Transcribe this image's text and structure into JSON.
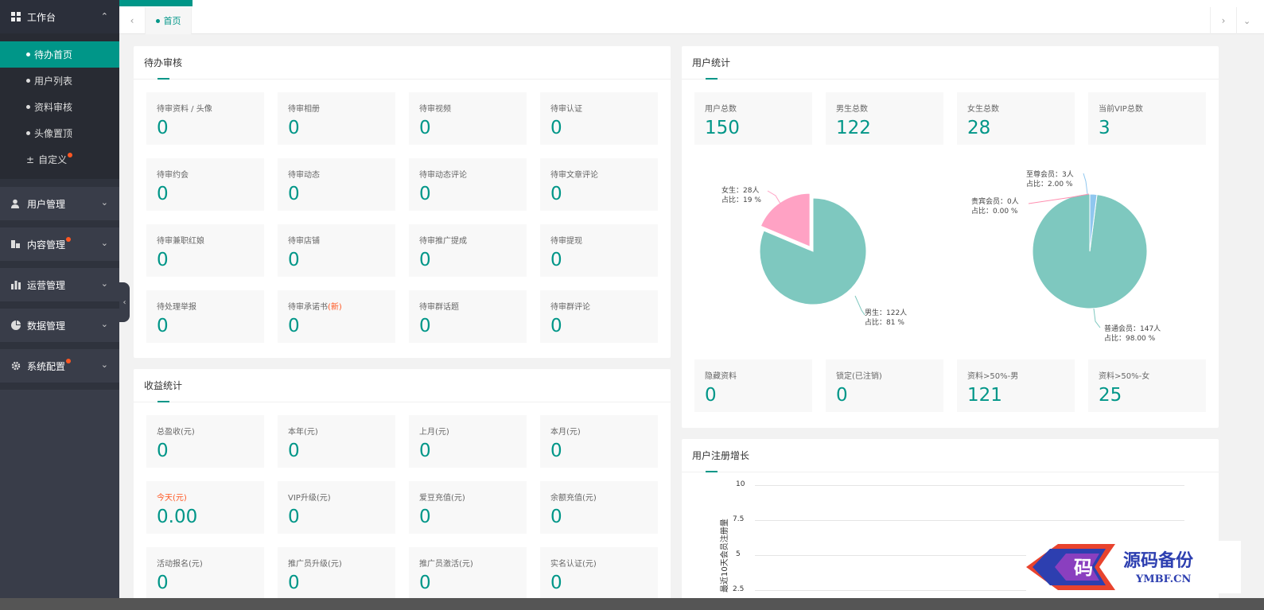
{
  "sidebar": {
    "workbench": {
      "label": "工作台",
      "items": [
        {
          "label": "待办首页",
          "active": true
        },
        {
          "label": "用户列表"
        },
        {
          "label": "资料审核"
        },
        {
          "label": "头像置顶"
        },
        {
          "label": "自定义",
          "badge": true
        }
      ]
    },
    "groups": [
      {
        "label": "用户管理",
        "icon": "user-icon"
      },
      {
        "label": "内容管理",
        "icon": "content-icon",
        "badge": true
      },
      {
        "label": "运营管理",
        "icon": "bar-chart-icon"
      },
      {
        "label": "数据管理",
        "icon": "pie-icon"
      },
      {
        "label": "系统配置",
        "icon": "gear-icon",
        "badge": true
      }
    ]
  },
  "tabs": {
    "home": "首页"
  },
  "pending": {
    "title": "待办审核",
    "items": [
      {
        "label": "待审资料 / 头像",
        "value": "0"
      },
      {
        "label": "待审相册",
        "value": "0"
      },
      {
        "label": "待审视频",
        "value": "0"
      },
      {
        "label": "待审认证",
        "value": "0"
      },
      {
        "label": "待审约会",
        "value": "0"
      },
      {
        "label": "待审动态",
        "value": "0"
      },
      {
        "label": "待审动态评论",
        "value": "0"
      },
      {
        "label": "待审文章评论",
        "value": "0"
      },
      {
        "label": "待审兼职红娘",
        "value": "0"
      },
      {
        "label": "待审店铺",
        "value": "0"
      },
      {
        "label": "待审推广提成",
        "value": "0"
      },
      {
        "label": "待审提现",
        "value": "0"
      },
      {
        "label": "待处理举报",
        "value": "0"
      },
      {
        "label": "待审承诺书",
        "tag": "(新)",
        "value": "0"
      },
      {
        "label": "待审群话题",
        "value": "0"
      },
      {
        "label": "待审群评论",
        "value": "0"
      }
    ]
  },
  "revenue": {
    "title": "收益统计",
    "items": [
      {
        "label": "总盈收(元)",
        "value": "0"
      },
      {
        "label": "本年(元)",
        "value": "0"
      },
      {
        "label": "上月(元)",
        "value": "0"
      },
      {
        "label": "本月(元)",
        "value": "0"
      },
      {
        "label": "今天(元)",
        "value": "0.00",
        "highlight": true
      },
      {
        "label": "VIP升级(元)",
        "value": "0"
      },
      {
        "label": "爱豆充值(元)",
        "value": "0"
      },
      {
        "label": "余额充值(元)",
        "value": "0"
      },
      {
        "label": "活动报名(元)",
        "value": "0"
      },
      {
        "label": "推广员升级(元)",
        "value": "0"
      },
      {
        "label": "推广员激活(元)",
        "value": "0"
      },
      {
        "label": "实名认证(元)",
        "value": "0"
      }
    ]
  },
  "users": {
    "title": "用户统计",
    "top": [
      {
        "label": "用户总数",
        "value": "150"
      },
      {
        "label": "男生总数",
        "value": "122"
      },
      {
        "label": "女生总数",
        "value": "28"
      },
      {
        "label": "当前VIP总数",
        "value": "3"
      }
    ],
    "bottom": [
      {
        "label": "隐藏资料",
        "value": "0"
      },
      {
        "label": "锁定(已注销)",
        "value": "0"
      },
      {
        "label": "资料>50%-男",
        "value": "121"
      },
      {
        "label": "资料>50%-女",
        "value": "25"
      }
    ],
    "gender_labels": {
      "female_a": "女生：28人",
      "female_b": "占比：19 %",
      "male_a": "男生：122人",
      "male_b": "占比：81 %"
    },
    "member_labels": {
      "supreme_a": "至尊会员：3人",
      "supreme_b": "占比：2.00 %",
      "vip_a": "贵宾会员：0人",
      "vip_b": "占比：0.00 %",
      "normal_a": "普通会员：147人",
      "normal_b": "占比：98.00 %"
    },
    "colors": {
      "male": "#7ec8bf",
      "female": "#ffa2c4",
      "supreme": "#8fc7ef"
    }
  },
  "chart_data": [
    {
      "type": "pie",
      "slices": [
        {
          "label": "女生",
          "value": 28,
          "percent": 19
        },
        {
          "label": "男生",
          "value": 122,
          "percent": 81
        }
      ]
    },
    {
      "type": "pie",
      "slices": [
        {
          "label": "至尊会员",
          "value": 3,
          "percent": 2.0
        },
        {
          "label": "贵宾会员",
          "value": 0,
          "percent": 0.0
        },
        {
          "label": "普通会员",
          "value": 147,
          "percent": 98.0
        }
      ]
    },
    {
      "type": "line",
      "title": "用户注册增长",
      "ylabel": "最近10天会员注册量",
      "yticks": [
        "10",
        "7.5",
        "5",
        "2.5"
      ],
      "ylim": [
        0,
        10
      ],
      "grid": true
    }
  ],
  "growth": {
    "title": "用户注册增长"
  },
  "watermark": {
    "cn": "源码备份",
    "en": "YMBF.CN",
    "glyph": "码"
  }
}
